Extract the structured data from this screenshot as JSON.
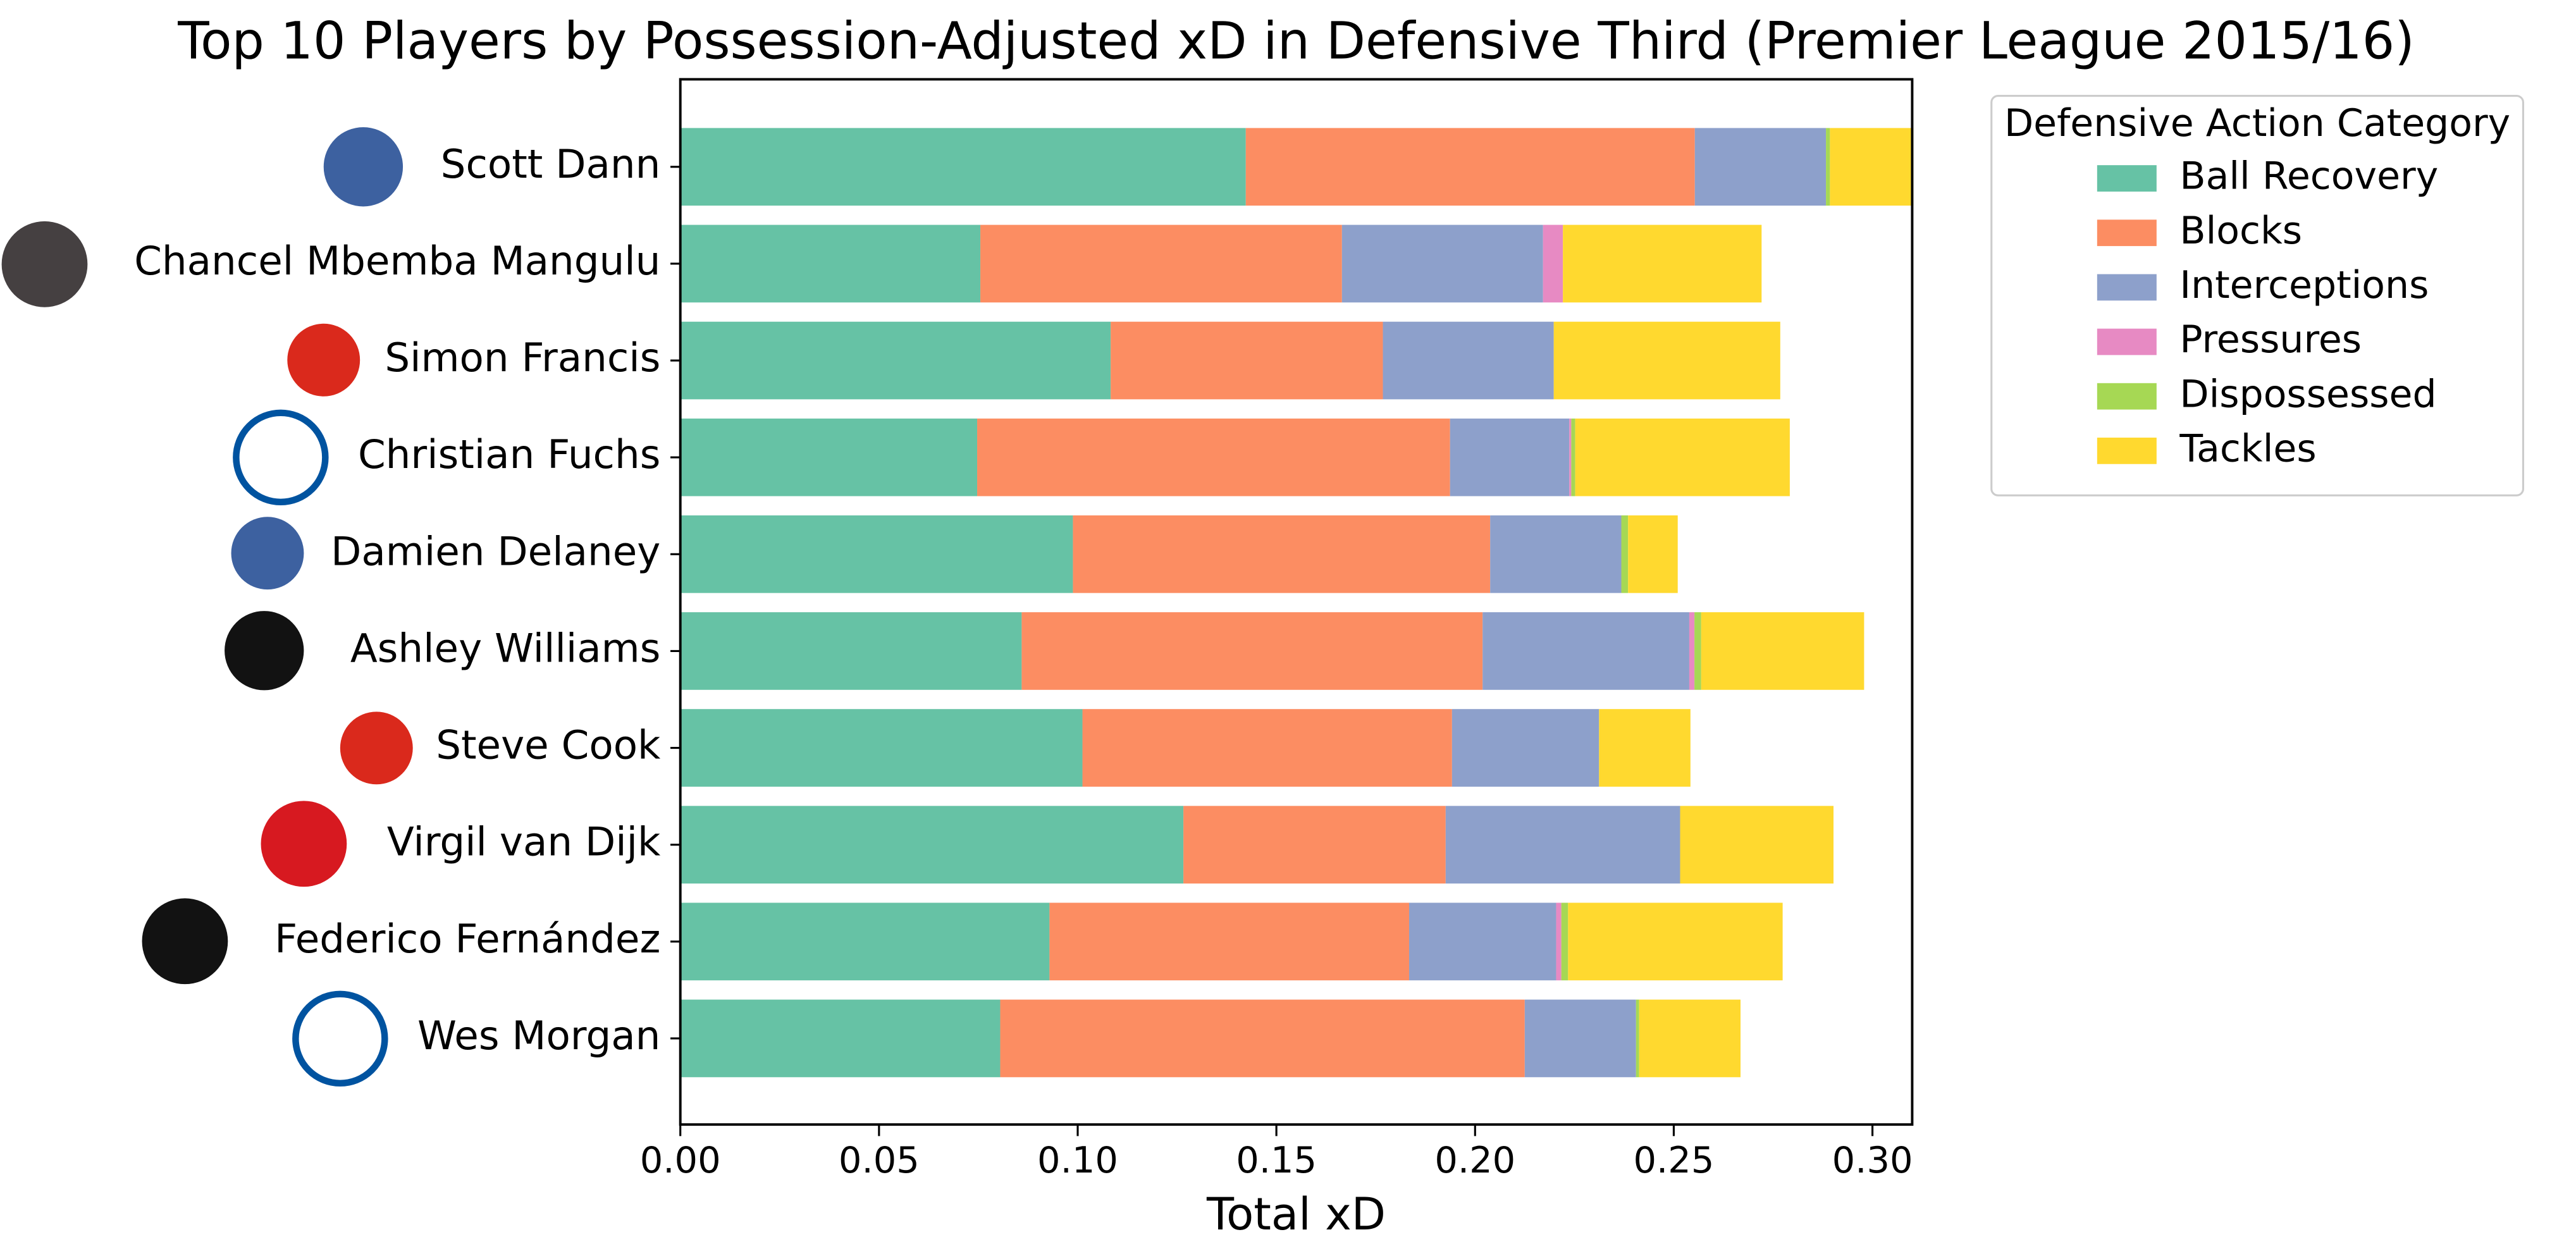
{
  "chart_data": {
    "type": "stacked-barh",
    "title": "Top 10 Players by Possession-Adjusted xD in Defensive Third (Premier League 2015/16)",
    "x_label": "Total xD",
    "legend_title": "Defensive Action Category",
    "legend_position": "outside-upper-right",
    "categories": [
      "Scott Dann",
      "Chancel Mbemba Mangulu",
      "Simon Francis",
      "Christian Fuchs",
      "Damien Delaney",
      "Ashley Williams",
      "Steve Cook",
      "Virgil van Dijk",
      "Federico Fernández",
      "Wes Morgan"
    ],
    "series": [
      {
        "name": "Ball Recovery",
        "color": "#66c2a5",
        "values": [
          0.1423,
          0.0755,
          0.1083,
          0.0747,
          0.0988,
          0.0859,
          0.1012,
          0.1266,
          0.0929,
          0.0805
        ]
      },
      {
        "name": "Blocks",
        "color": "#fc8d62",
        "values": [
          0.113,
          0.091,
          0.0685,
          0.119,
          0.105,
          0.116,
          0.093,
          0.066,
          0.0905,
          0.132
        ]
      },
      {
        "name": "Interceptions",
        "color": "#8da0cb",
        "values": [
          0.033,
          0.0506,
          0.043,
          0.03,
          0.033,
          0.052,
          0.037,
          0.059,
          0.037,
          0.028
        ]
      },
      {
        "name": "Pressures",
        "color": "#e78ac3",
        "values": [
          0,
          0.005,
          0,
          0.0005,
          0,
          0.0013,
          0,
          0,
          0.0013,
          0
        ]
      },
      {
        "name": "Dispossessed",
        "color": "#a6d854",
        "values": [
          0.001,
          0,
          0,
          0.001,
          0.0017,
          0.0017,
          0,
          0,
          0.0017,
          0.0008
        ]
      },
      {
        "name": "Tackles",
        "color": "#ffd92f",
        "values": [
          0.021,
          0.05,
          0.057,
          0.054,
          0.0125,
          0.041,
          0.023,
          0.0386,
          0.054,
          0.0255
        ]
      }
    ],
    "xlim": [
      0,
      0.31
    ],
    "xticks": [
      {
        "value": 0,
        "label": "0.00"
      },
      {
        "value": 0.05,
        "label": "0.05"
      },
      {
        "value": 0.1,
        "label": "0.10"
      },
      {
        "value": 0.15,
        "label": "0.15"
      },
      {
        "value": 0.2,
        "label": "0.20"
      },
      {
        "value": 0.25,
        "label": "0.25"
      },
      {
        "value": 0.3,
        "label": "0.30"
      }
    ]
  }
}
